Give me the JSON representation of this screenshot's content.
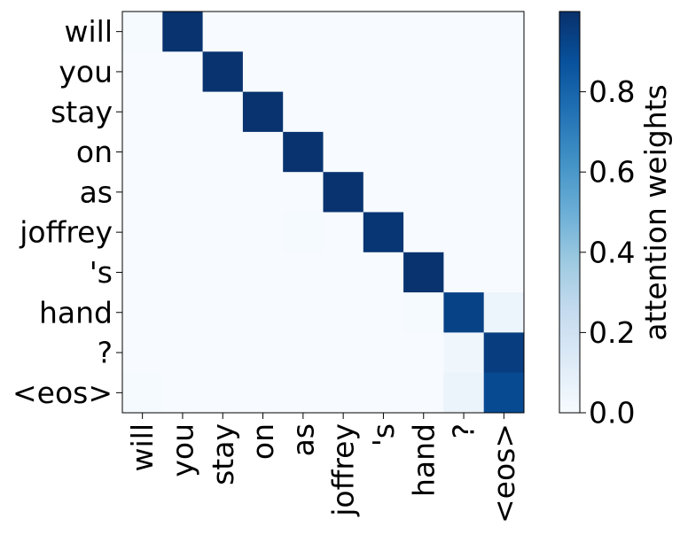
{
  "chart_data": {
    "type": "heatmap",
    "title": "",
    "x_labels": [
      "will",
      "you",
      "stay",
      "on",
      "as",
      "joffrey",
      "'s",
      "hand",
      "?",
      "<eos>"
    ],
    "y_labels": [
      "will",
      "you",
      "stay",
      "on",
      "as",
      "joffrey",
      "'s",
      "hand",
      "?",
      "<eos>"
    ],
    "matrix": [
      [
        0.01,
        0.99,
        0.0,
        0.0,
        0.0,
        0.0,
        0.0,
        0.0,
        0.0,
        0.0
      ],
      [
        0.0,
        0.0,
        0.99,
        0.0,
        0.0,
        0.0,
        0.0,
        0.0,
        0.0,
        0.0
      ],
      [
        0.0,
        0.0,
        0.0,
        0.99,
        0.0,
        0.0,
        0.0,
        0.0,
        0.0,
        0.0
      ],
      [
        0.0,
        0.0,
        0.0,
        0.0,
        0.99,
        0.0,
        0.0,
        0.0,
        0.0,
        0.0
      ],
      [
        0.0,
        0.0,
        0.0,
        0.0,
        0.0,
        0.99,
        0.0,
        0.0,
        0.0,
        0.0
      ],
      [
        0.0,
        0.0,
        0.0,
        0.0,
        0.01,
        0.0,
        0.98,
        0.0,
        0.0,
        0.0
      ],
      [
        0.0,
        0.0,
        0.0,
        0.0,
        0.0,
        0.0,
        0.0,
        0.99,
        0.0,
        0.0
      ],
      [
        0.0,
        0.0,
        0.0,
        0.0,
        0.0,
        0.0,
        0.0,
        0.01,
        0.93,
        0.05
      ],
      [
        0.0,
        0.0,
        0.0,
        0.0,
        0.0,
        0.0,
        0.0,
        0.0,
        0.04,
        0.95
      ],
      [
        0.01,
        0.0,
        0.0,
        0.0,
        0.0,
        0.0,
        0.0,
        0.0,
        0.06,
        0.9
      ]
    ],
    "colormap": "Blues",
    "colorbar": {
      "label": "attention weights",
      "min": 0.0,
      "max": 1.0,
      "ticks": [
        0.0,
        0.2,
        0.4,
        0.6,
        0.8
      ],
      "tick_labels": [
        "0.0",
        "0.2",
        "0.4",
        "0.6",
        "0.8"
      ]
    },
    "xlabel": "",
    "ylabel": "",
    "grid": false
  }
}
